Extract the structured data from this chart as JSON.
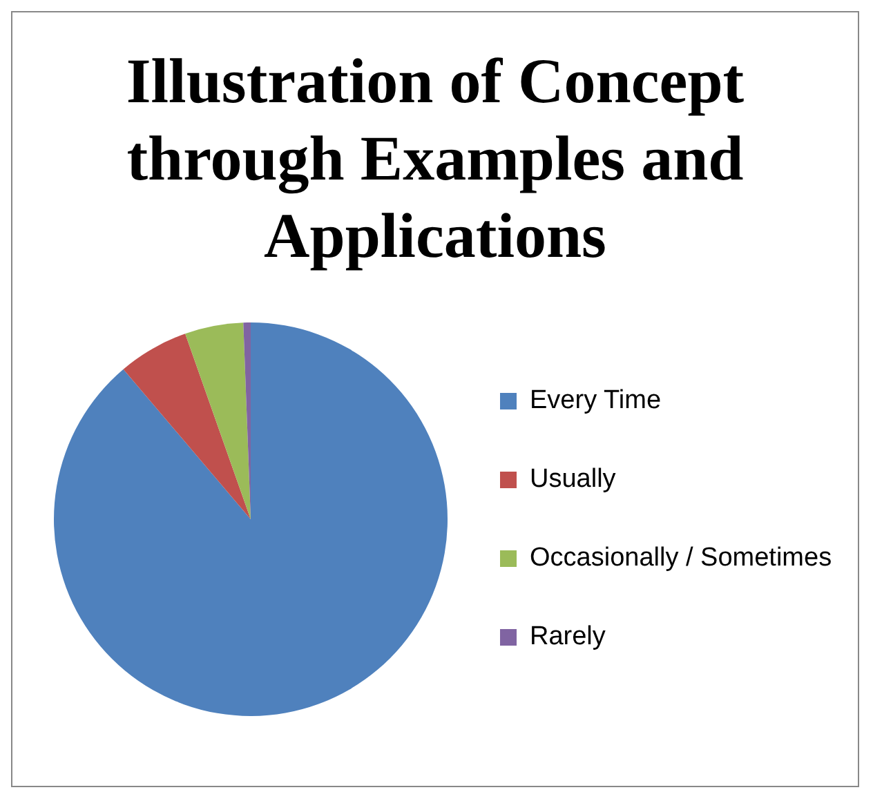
{
  "chart_data": {
    "type": "pie",
    "title": "Illustration of Concept through Examples and Applications",
    "categories": [
      "Every Time",
      "Usually",
      "Occasionally / Sometimes",
      "Rarely"
    ],
    "values": [
      88.8,
      5.8,
      4.8,
      0.6
    ],
    "colors": [
      "#4f81bd",
      "#c0504d",
      "#9bbb59",
      "#8064a2"
    ],
    "legend": "right"
  }
}
